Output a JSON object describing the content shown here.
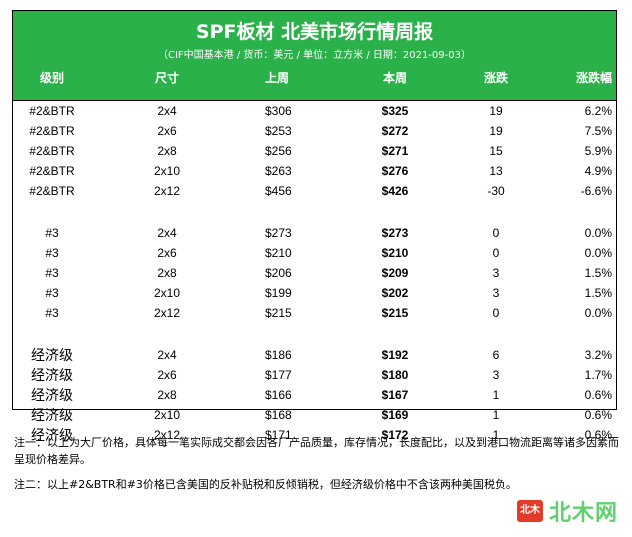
{
  "report": {
    "title": "SPF板材 北美市场行情周报",
    "subtitle": "（CIF中国基本港 / 货币：美元 / 单位：立方米 / 日期：2021-09-03）",
    "headers": {
      "grade": "级别",
      "size": "尺寸",
      "last_week": "上周",
      "this_week": "本周",
      "change": "涨跌",
      "change_pct": "涨跌幅"
    },
    "groups": [
      {
        "rows": [
          {
            "grade": "#2&BTR",
            "size": "2x4",
            "last": "$306",
            "this": "$325",
            "chg": "19",
            "pct": "6.2%"
          },
          {
            "grade": "#2&BTR",
            "size": "2x6",
            "last": "$253",
            "this": "$272",
            "chg": "19",
            "pct": "7.5%"
          },
          {
            "grade": "#2&BTR",
            "size": "2x8",
            "last": "$256",
            "this": "$271",
            "chg": "15",
            "pct": "5.9%"
          },
          {
            "grade": "#2&BTR",
            "size": "2x10",
            "last": "$263",
            "this": "$276",
            "chg": "13",
            "pct": "4.9%"
          },
          {
            "grade": "#2&BTR",
            "size": "2x12",
            "last": "$456",
            "this": "$426",
            "chg": "-30",
            "pct": "-6.6%"
          }
        ]
      },
      {
        "rows": [
          {
            "grade": "#3",
            "size": "2x4",
            "last": "$273",
            "this": "$273",
            "chg": "0",
            "pct": "0.0%"
          },
          {
            "grade": "#3",
            "size": "2x6",
            "last": "$210",
            "this": "$210",
            "chg": "0",
            "pct": "0.0%"
          },
          {
            "grade": "#3",
            "size": "2x8",
            "last": "$206",
            "this": "$209",
            "chg": "3",
            "pct": "1.5%"
          },
          {
            "grade": "#3",
            "size": "2x10",
            "last": "$199",
            "this": "$202",
            "chg": "3",
            "pct": "1.5%"
          },
          {
            "grade": "#3",
            "size": "2x12",
            "last": "$215",
            "this": "$215",
            "chg": "0",
            "pct": "0.0%"
          }
        ]
      },
      {
        "rows": [
          {
            "grade": "经济级",
            "size": "2x4",
            "last": "$186",
            "this": "$192",
            "chg": "6",
            "pct": "3.2%"
          },
          {
            "grade": "经济级",
            "size": "2x6",
            "last": "$177",
            "this": "$180",
            "chg": "3",
            "pct": "1.7%"
          },
          {
            "grade": "经济级",
            "size": "2x8",
            "last": "$166",
            "this": "$167",
            "chg": "1",
            "pct": "0.6%"
          },
          {
            "grade": "经济级",
            "size": "2x10",
            "last": "$168",
            "this": "$169",
            "chg": "1",
            "pct": "0.6%"
          },
          {
            "grade": "经济级",
            "size": "2x12",
            "last": "$171",
            "this": "$172",
            "chg": "1",
            "pct": "0.6%"
          }
        ]
      }
    ]
  },
  "notes": {
    "note1": "注一：以上为大厂价格，具体每一笔实际成交都会因各厂产品质量，库存情况，长度配比，以及到港口物流距离等诸多因素而呈现价格差异。",
    "note2": "注二：以上#2&BTR和#3价格已含美国的反补贴税和反倾销税，但经济级价格中不含该两种美国税负。"
  },
  "logo": {
    "badge": "北木",
    "text": "北木网"
  },
  "colors": {
    "banner": "#2bb14a",
    "logo_badge": "#e23b2a",
    "logo_text": "#5fd16d"
  }
}
